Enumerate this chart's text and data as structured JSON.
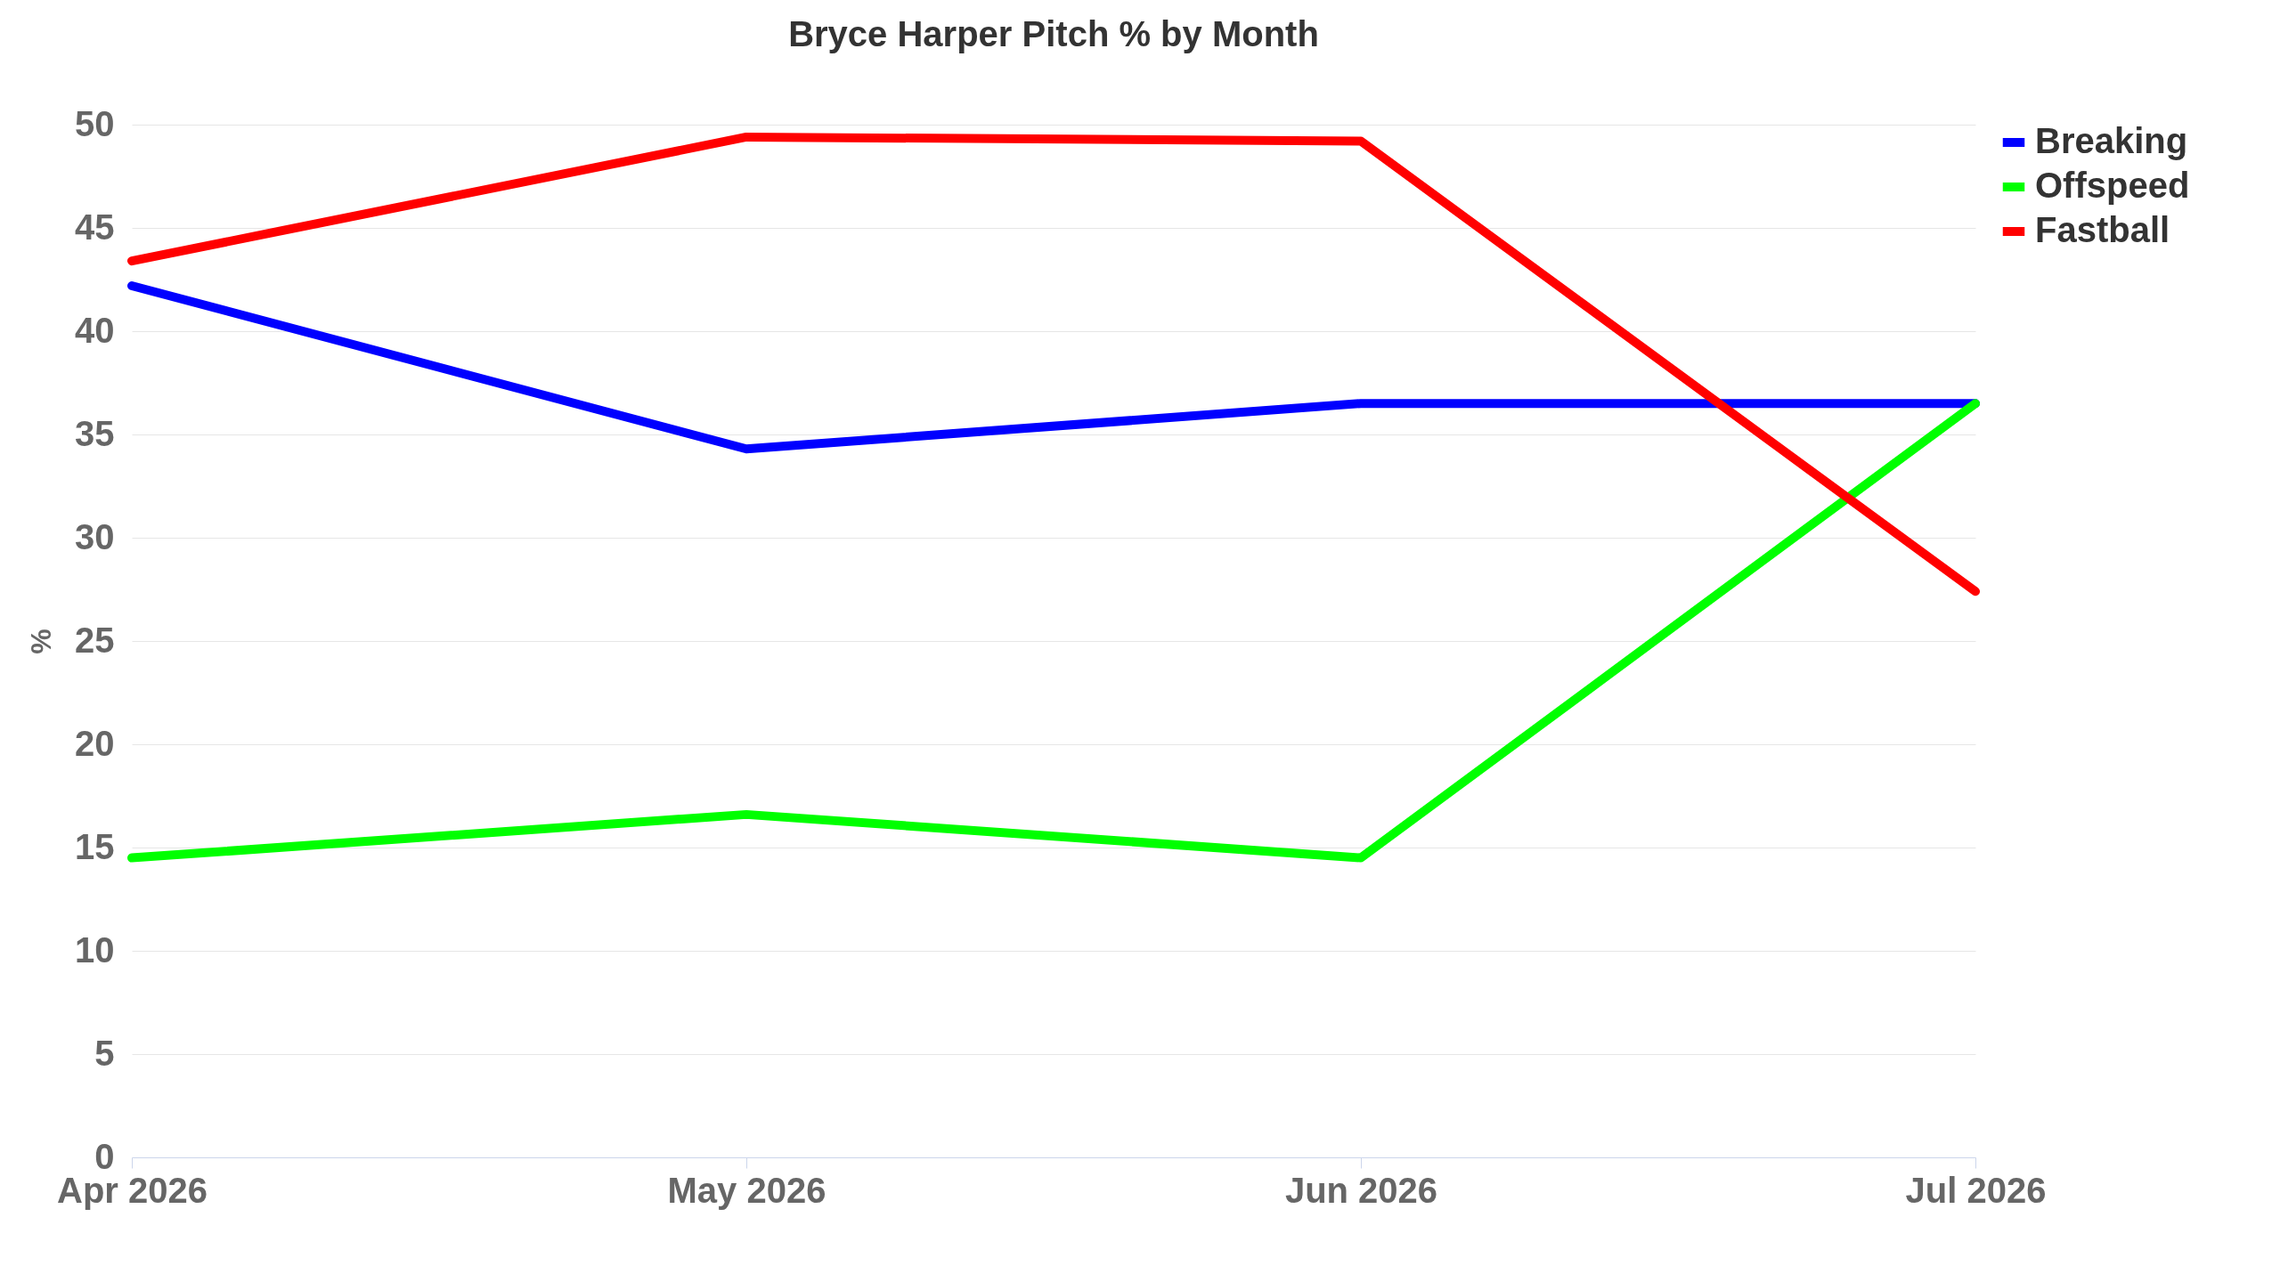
{
  "chart_data": {
    "type": "line",
    "title": "Bryce Harper Pitch % by Month",
    "ylabel": "%",
    "categories": [
      "Apr 2026",
      "May 2026",
      "Jun 2026",
      "Jul 2026"
    ],
    "series": [
      {
        "name": "Breaking",
        "color": "#0000ff",
        "values": [
          42.2,
          34.3,
          36.5,
          36.5
        ]
      },
      {
        "name": "Offspeed",
        "color": "#00ff00",
        "values": [
          14.5,
          16.6,
          14.5,
          36.5
        ]
      },
      {
        "name": "Fastball",
        "color": "#ff0000",
        "values": [
          43.4,
          49.4,
          49.2,
          27.4
        ]
      }
    ],
    "ylim": [
      0,
      50
    ],
    "yticks": [
      0,
      5,
      10,
      15,
      20,
      25,
      30,
      35,
      40,
      45,
      50
    ],
    "grid": "y",
    "legend": "right"
  }
}
